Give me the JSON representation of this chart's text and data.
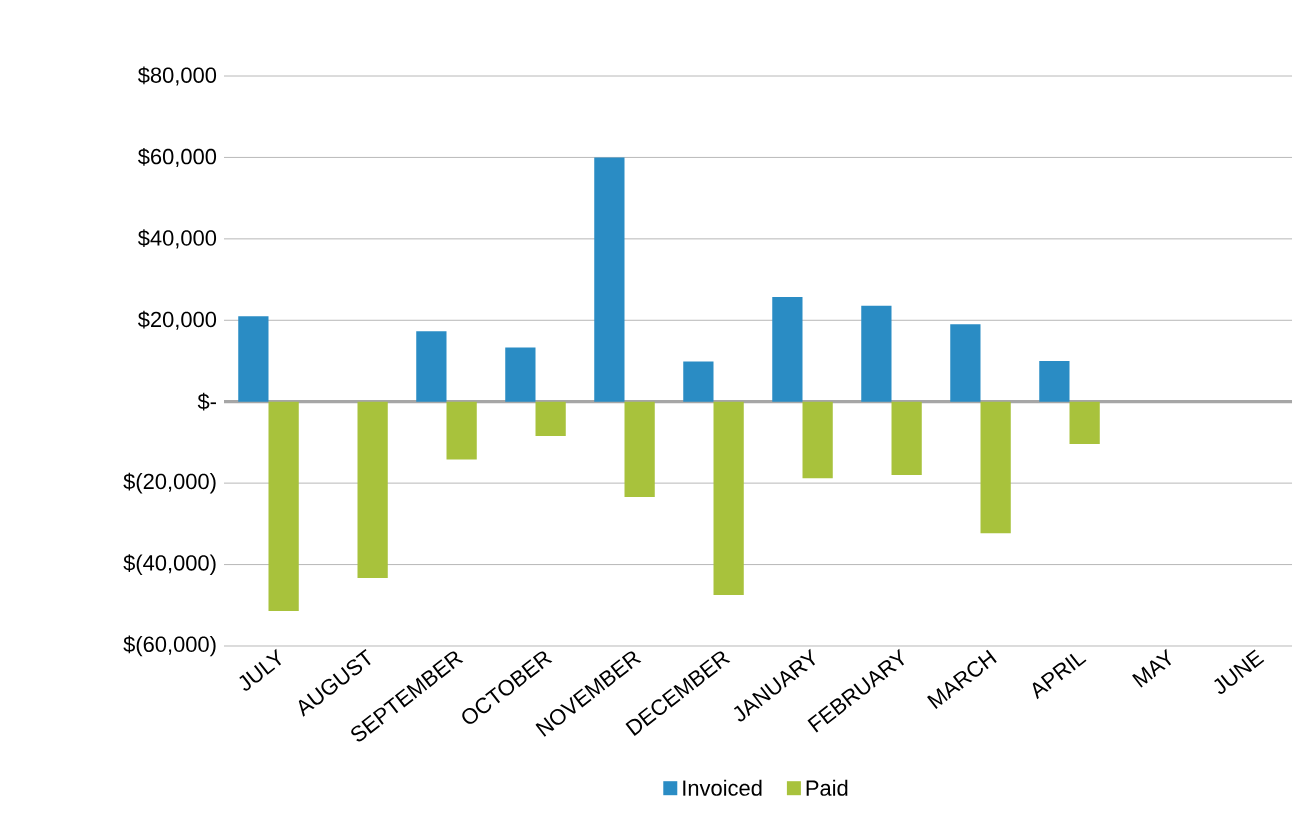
{
  "chart_data": {
    "type": "bar",
    "categories": [
      "JULY",
      "AUGUST",
      "SEPTEMBER",
      "OCTOBER",
      "NOVEMBER",
      "DECEMBER",
      "JANUARY",
      "FEBRUARY",
      "MARCH",
      "APRIL",
      "MAY",
      "JUNE"
    ],
    "series": [
      {
        "name": "Invoiced",
        "color": "#2a8cc4",
        "values": [
          21000,
          null,
          17300,
          13300,
          60000,
          9900,
          25700,
          23600,
          19000,
          10000,
          null,
          null
        ]
      },
      {
        "name": "Paid",
        "color": "#a8c23c",
        "values": [
          -51400,
          -43300,
          -14200,
          -8400,
          -23400,
          -47500,
          -18800,
          -18000,
          -32300,
          -10400,
          null,
          null
        ]
      }
    ],
    "ylim": [
      -60000,
      80000
    ],
    "yticks": [
      {
        "value": -60000,
        "label": "$(60,000)"
      },
      {
        "value": -40000,
        "label": "$(40,000)"
      },
      {
        "value": -20000,
        "label": "$(20,000)"
      },
      {
        "value": 0,
        "label": "$-"
      },
      {
        "value": 20000,
        "label": "$20,000"
      },
      {
        "value": 40000,
        "label": "$40,000"
      },
      {
        "value": 60000,
        "label": "$60,000"
      },
      {
        "value": 80000,
        "label": "$80,000"
      }
    ],
    "grid": "y",
    "legend": "bottom"
  }
}
